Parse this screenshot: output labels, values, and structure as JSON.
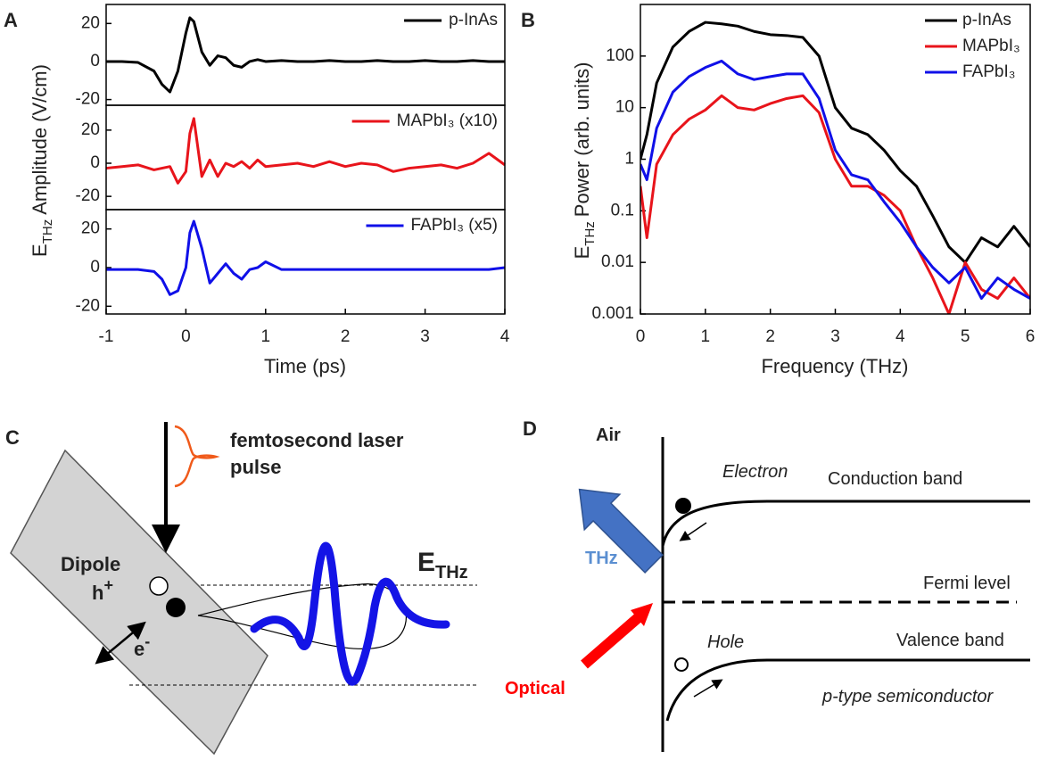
{
  "panel_labels": [
    "A",
    "B",
    "C",
    "D"
  ],
  "chart_data": [
    {
      "type": "line",
      "legend": "upper right",
      "ylabel": {
        "text": "E",
        "sub": "THz",
        "rest": "Amplitude (V/cm)"
      },
      "x": [
        -1,
        -0.8,
        -0.6,
        -0.4,
        -0.3,
        -0.2,
        -0.1,
        0,
        0.05,
        0.1,
        0.2,
        0.3,
        0.4,
        0.5,
        0.6,
        0.7,
        0.8,
        0.9,
        1,
        1.2,
        1.4,
        1.6,
        1.8,
        2,
        2.2,
        2.4,
        2.6,
        2.8,
        3,
        3.2,
        3.4,
        3.6,
        3.8,
        4
      ],
      "xlim": [
        -1,
        4
      ],
      "ylim": [
        -23,
        30
      ],
      "yticks": [
        -20,
        0,
        20
      ],
      "series": [
        {
          "name": "p-InAs",
          "color": "#000000",
          "values": [
            0,
            0,
            -0.5,
            -5,
            -12,
            -16,
            -5,
            15,
            23,
            21,
            5,
            -2,
            3,
            2,
            -2,
            -3,
            0,
            1,
            0,
            0.5,
            0,
            0,
            0.5,
            0,
            0,
            0.5,
            0,
            0,
            0.5,
            0,
            0,
            0.5,
            0,
            0
          ]
        }
      ]
    },
    {
      "type": "line",
      "legend": "upper right",
      "x": [
        -1,
        -0.8,
        -0.6,
        -0.4,
        -0.3,
        -0.2,
        -0.1,
        0,
        0.05,
        0.1,
        0.2,
        0.3,
        0.4,
        0.5,
        0.6,
        0.7,
        0.8,
        0.9,
        1,
        1.2,
        1.4,
        1.6,
        1.8,
        2,
        2.2,
        2.4,
        2.6,
        2.8,
        3,
        3.2,
        3.4,
        3.6,
        3.8,
        4
      ],
      "xlim": [
        -1,
        4
      ],
      "ylim": [
        -28,
        35
      ],
      "yticks": [
        -20,
        0,
        20
      ],
      "series": [
        {
          "name": "MAPbI₃ (x10)",
          "color": "#e8141b",
          "values": [
            -3,
            -2,
            -1,
            -4,
            -3,
            -2,
            -12,
            -5,
            18,
            27,
            -8,
            2,
            -8,
            0,
            -2,
            1,
            -3,
            2,
            -2,
            -1,
            0,
            -2,
            1,
            -2,
            0,
            -1,
            -5,
            -3,
            -2,
            -1,
            -3,
            0,
            6,
            -1
          ]
        }
      ]
    },
    {
      "type": "line",
      "legend": "upper right",
      "xlabel": "Time (ps)",
      "x": [
        -1,
        -0.8,
        -0.6,
        -0.4,
        -0.3,
        -0.2,
        -0.1,
        0,
        0.05,
        0.1,
        0.2,
        0.3,
        0.4,
        0.5,
        0.6,
        0.7,
        0.8,
        0.9,
        1,
        1.2,
        1.4,
        1.6,
        1.8,
        2,
        2.2,
        2.4,
        2.6,
        2.8,
        3,
        3.2,
        3.4,
        3.6,
        3.8,
        4
      ],
      "xlim": [
        -1,
        4
      ],
      "xticks": [
        -1,
        0,
        1,
        2,
        3,
        4
      ],
      "ylim": [
        -24,
        30
      ],
      "yticks": [
        -20,
        0,
        20
      ],
      "series": [
        {
          "name": "FAPbI₃ (x5)",
          "color": "#1010e8",
          "values": [
            -1,
            -1,
            -1,
            -2,
            -6,
            -14,
            -12,
            0,
            18,
            24,
            10,
            -8,
            -3,
            2,
            -3,
            -6,
            -1,
            0,
            3,
            -1,
            -1,
            -1,
            -1,
            -1,
            -1,
            -1,
            -1,
            -1,
            -1,
            -1,
            -1,
            -1,
            -1,
            0
          ]
        }
      ]
    },
    {
      "type": "line",
      "legend": "upper right",
      "yscale": "log",
      "xlabel": "Frequency (THz)",
      "ylabel": {
        "text": "E",
        "sub": "THz",
        "rest": "Power (arb. units)"
      },
      "x": [
        0,
        0.1,
        0.25,
        0.5,
        0.75,
        1,
        1.25,
        1.5,
        1.75,
        2,
        2.25,
        2.5,
        2.75,
        3,
        3.25,
        3.5,
        3.75,
        4,
        4.25,
        4.5,
        4.75,
        5,
        5.25,
        5.5,
        5.75,
        6
      ],
      "xlim": [
        0,
        6
      ],
      "xticks": [
        0,
        1,
        2,
        3,
        4,
        5,
        6
      ],
      "ylim": [
        0.001,
        1000
      ],
      "yticks": [
        0.001,
        0.01,
        0.1,
        1,
        10,
        100
      ],
      "series": [
        {
          "name": "p-InAs",
          "color": "#000000",
          "values": [
            1,
            3,
            30,
            150,
            300,
            450,
            420,
            380,
            300,
            260,
            250,
            230,
            100,
            10,
            4,
            3,
            1.5,
            0.6,
            0.3,
            0.08,
            0.02,
            0.01,
            0.03,
            0.02,
            0.05,
            0.02
          ]
        },
        {
          "name": "MAPbI₃",
          "color": "#e8141b",
          "values": [
            0.3,
            0.03,
            0.8,
            3,
            6,
            9,
            17,
            10,
            9,
            12,
            15,
            17,
            8,
            1,
            0.3,
            0.3,
            0.2,
            0.1,
            0.02,
            0.005,
            0.001,
            0.01,
            0.003,
            0.002,
            0.005,
            0.002
          ]
        },
        {
          "name": "FAPbI₃",
          "color": "#1010e8",
          "values": [
            0.8,
            0.4,
            4,
            20,
            40,
            60,
            80,
            45,
            35,
            40,
            45,
            45,
            15,
            1.5,
            0.5,
            0.4,
            0.15,
            0.06,
            0.02,
            0.008,
            0.004,
            0.008,
            0.002,
            0.005,
            0.003,
            0.002
          ]
        }
      ]
    }
  ],
  "diagram_c": {
    "laser": [
      "femtosecond laser",
      "pulse"
    ],
    "dipole": "Dipole",
    "hole": {
      "text": "h",
      "sup": "+"
    },
    "electron": {
      "text": "e",
      "sup": "-"
    },
    "field": {
      "text": "E",
      "sub": "THz"
    }
  },
  "diagram_d": {
    "medium": "Air",
    "electron": "Electron",
    "conduction": "Conduction band",
    "emission": "THz",
    "fermi": "Fermi level",
    "hole": "Hole",
    "valence": "Valence band",
    "excitation": "Optical",
    "material": "p-type semiconductor"
  }
}
